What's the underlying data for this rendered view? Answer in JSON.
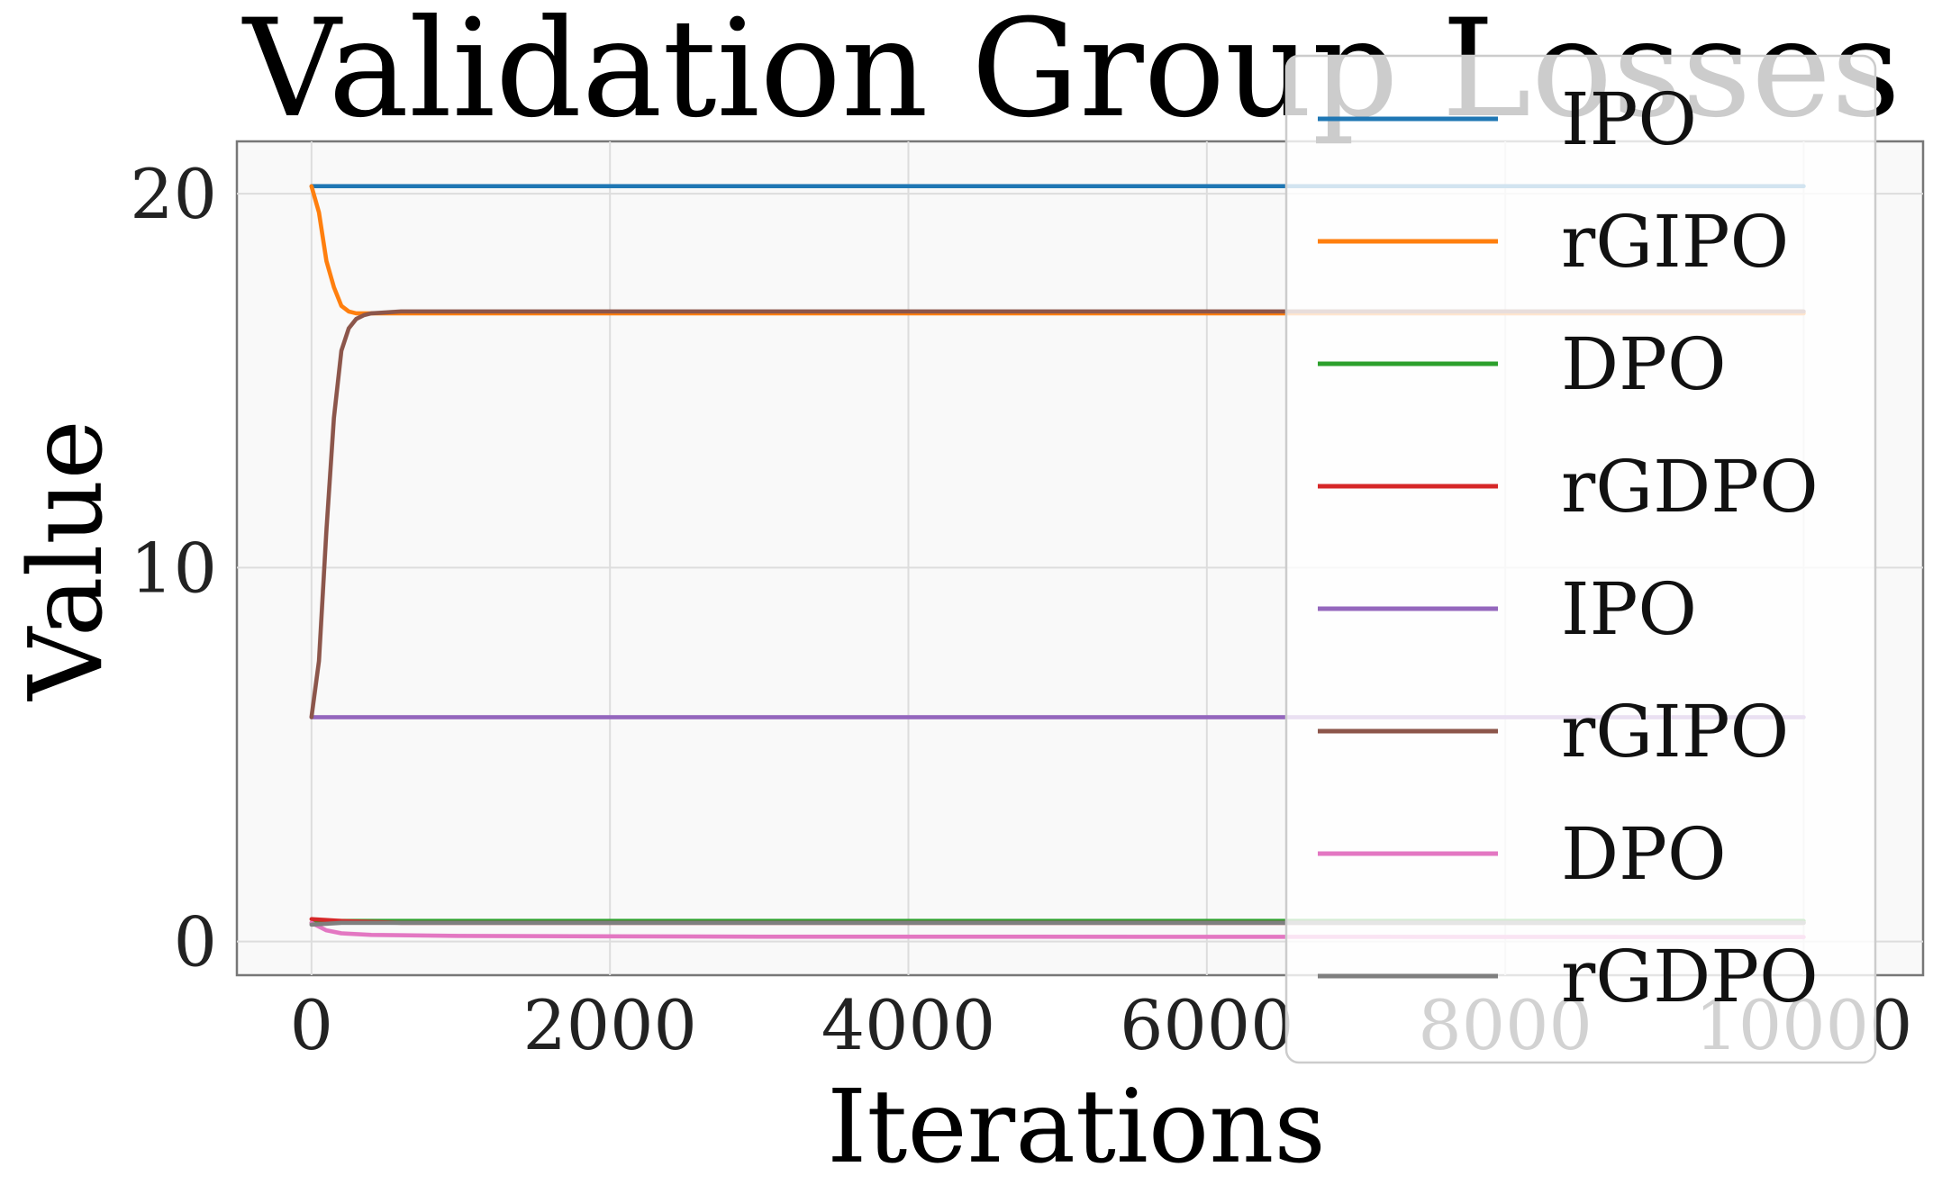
{
  "chart_data": {
    "type": "line",
    "title": "Validation Group Losses",
    "xlabel": "Iterations",
    "ylabel": "Value",
    "xlim": [
      -500,
      10800
    ],
    "ylim": [
      -0.9,
      21.4
    ],
    "xticks": [
      0,
      2000,
      4000,
      6000,
      8000,
      10000
    ],
    "yticks": [
      0,
      10,
      20
    ],
    "grid": true,
    "legend_position": "right",
    "series": [
      {
        "name": "IPO",
        "color": "#1f77b4",
        "x": [
          0,
          10000
        ],
        "y": [
          20.2,
          20.2
        ]
      },
      {
        "name": "rGIPO",
        "color": "#ff7f0e",
        "x": [
          0,
          50,
          100,
          150,
          200,
          250,
          300,
          400,
          600,
          1000,
          10000
        ],
        "y": [
          20.2,
          19.5,
          18.2,
          17.5,
          17.0,
          16.85,
          16.8,
          16.8,
          16.8,
          16.8,
          16.8
        ]
      },
      {
        "name": "DPO",
        "color": "#2ca02c",
        "x": [
          0,
          200,
          1000,
          10000
        ],
        "y": [
          0.5,
          0.55,
          0.55,
          0.55
        ]
      },
      {
        "name": "rGDPO",
        "color": "#d62728",
        "x": [
          0,
          200,
          600,
          1000,
          10000
        ],
        "y": [
          0.6,
          0.55,
          0.5,
          0.5,
          0.5
        ]
      },
      {
        "name": "IPO",
        "color": "#9467bd",
        "x": [
          0,
          10000
        ],
        "y": [
          6.0,
          6.0
        ]
      },
      {
        "name": "rGIPO",
        "color": "#8c564b",
        "x": [
          0,
          50,
          100,
          150,
          200,
          250,
          300,
          350,
          400,
          600,
          1000,
          10000
        ],
        "y": [
          6.0,
          7.5,
          11.0,
          14.0,
          15.8,
          16.4,
          16.65,
          16.75,
          16.8,
          16.85,
          16.85,
          16.85
        ]
      },
      {
        "name": "DPO",
        "color": "#e377c2",
        "x": [
          0,
          100,
          200,
          400,
          1000,
          3000,
          10000
        ],
        "y": [
          0.5,
          0.3,
          0.22,
          0.18,
          0.15,
          0.13,
          0.12
        ]
      },
      {
        "name": "rGDPO",
        "color": "#7f7f7f",
        "x": [
          0,
          200,
          1000,
          10000
        ],
        "y": [
          0.45,
          0.5,
          0.5,
          0.5
        ]
      }
    ]
  }
}
